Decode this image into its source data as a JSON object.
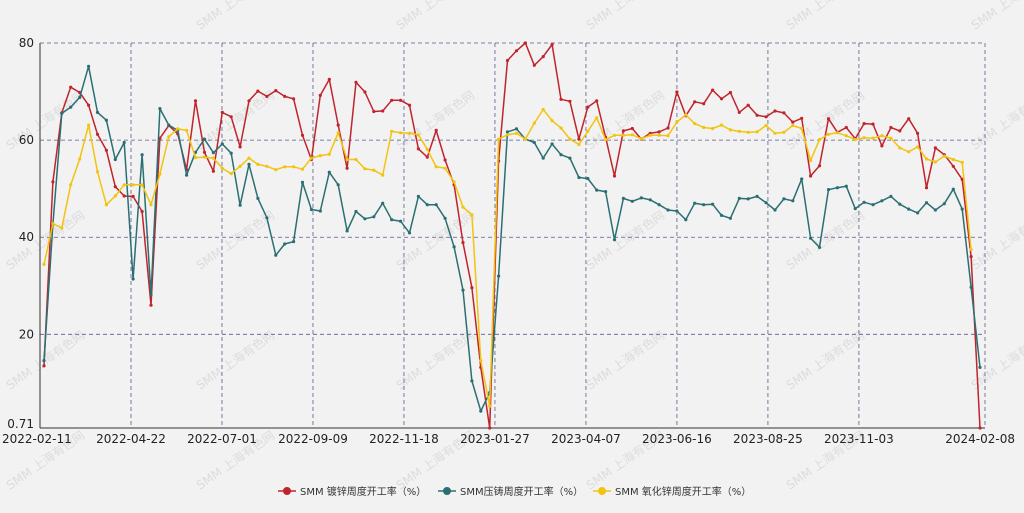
{
  "chart_data": {
    "type": "line",
    "x_start": "2022-02-11",
    "x_end": "2024-02-08",
    "xticks": [
      "2022-02-11",
      "2022-04-22",
      "2022-07-01",
      "2022-09-09",
      "2022-11-18",
      "2023-01-27",
      "2023-04-07",
      "2023-06-16",
      "2023-08-25",
      "2023-11-03",
      "2024-02-08"
    ],
    "yticks": [
      0.71,
      20,
      40,
      60,
      80
    ],
    "ylim": [
      0.71,
      80
    ],
    "grid": true,
    "legend_position": "bottom",
    "watermark": "SMM 上海有色网",
    "series": [
      {
        "name": "SMM 镀锌周度开工率（%）",
        "color": "#c0242c",
        "values": [
          13.5,
          51.4,
          65.6,
          70.9,
          69.8,
          67.2,
          61.2,
          57.9,
          50.4,
          48.5,
          48.4,
          45.3,
          26.0,
          60.4,
          63.0,
          61.3,
          53.9,
          68.1,
          57.5,
          53.6,
          65.7,
          64.8,
          58.6,
          68.1,
          70.1,
          69.0,
          70.2,
          69.0,
          68.5,
          61.0,
          56.0,
          69.2,
          72.5,
          63.1,
          54.2,
          71.9,
          69.9,
          65.9,
          66.0,
          68.2,
          68.2,
          67.2,
          58.2,
          56.5,
          62.0,
          55.9,
          50.8,
          38.9,
          29.6,
          13.2,
          0.71,
          55.7,
          76.4,
          78.4,
          80.0,
          75.4,
          77.2,
          79.7,
          68.4,
          68.0,
          60.2,
          66.8,
          68.1,
          60.6,
          52.6,
          61.9,
          62.4,
          60.2,
          61.4,
          61.7,
          62.5,
          69.9,
          65.0,
          67.9,
          67.5,
          70.3,
          68.5,
          69.8,
          65.7,
          67.2,
          65.1,
          64.8,
          66.0,
          65.6,
          63.7,
          64.5,
          52.6,
          54.7,
          64.4,
          61.6,
          62.6,
          60.3,
          63.4,
          63.3,
          58.8,
          62.6,
          61.9,
          64.4,
          61.4,
          50.2,
          58.4,
          57.0,
          54.6,
          51.9,
          36.0,
          0.71
        ]
      },
      {
        "name": "SMM压铸周度开工率（%）",
        "color": "#2a6f73",
        "values": [
          14.6,
          42.7,
          65.5,
          66.8,
          68.8,
          75.2,
          65.7,
          64.1,
          56.0,
          59.5,
          31.4,
          57.0,
          28.2,
          66.5,
          63.1,
          62.0,
          52.8,
          57.5,
          60.2,
          57.4,
          59.2,
          57.3,
          46.6,
          55.0,
          48.0,
          44.0,
          36.3,
          38.6,
          39.1,
          51.3,
          45.7,
          45.4,
          53.4,
          50.8,
          41.3,
          45.3,
          43.8,
          44.2,
          47.0,
          43.6,
          43.3,
          40.9,
          48.4,
          46.7,
          46.7,
          43.9,
          38.0,
          29.1,
          10.4,
          4.2,
          8.0,
          32.0,
          61.7,
          62.3,
          60.2,
          59.5,
          56.3,
          59.2,
          57.0,
          56.3,
          52.3,
          52.1,
          49.7,
          49.4,
          39.5,
          48.0,
          47.4,
          48.1,
          47.7,
          46.7,
          45.6,
          45.4,
          43.6,
          47.0,
          46.7,
          46.8,
          44.5,
          43.9,
          48.0,
          47.9,
          48.4,
          47.1,
          45.6,
          47.9,
          47.5,
          52.0,
          39.8,
          37.9,
          49.8,
          50.2,
          50.5,
          45.9,
          47.2,
          46.7,
          47.5,
          48.4,
          46.8,
          45.8,
          45.0,
          47.1,
          45.6,
          46.9,
          49.9,
          45.8,
          29.7,
          13.2
        ]
      },
      {
        "name": "SMM 氧化锌周度开工率（%）",
        "color": "#f2c40f",
        "values": [
          34.4,
          42.8,
          41.9,
          50.8,
          56.1,
          63.1,
          53.5,
          46.7,
          48.5,
          50.8,
          50.8,
          50.8,
          46.7,
          53.0,
          60.7,
          62.3,
          62.0,
          56.4,
          56.5,
          56.3,
          54.2,
          53.1,
          54.6,
          56.3,
          55.0,
          54.6,
          53.9,
          54.5,
          54.5,
          54.0,
          56.3,
          56.8,
          57.1,
          61.5,
          56.0,
          56.0,
          54.1,
          53.8,
          52.8,
          61.8,
          61.5,
          61.4,
          61.1,
          58.1,
          54.5,
          54.2,
          51.4,
          46.2,
          44.6,
          14.6,
          5.2,
          60.2,
          61.1,
          61.4,
          60.2,
          63.5,
          66.3,
          64.0,
          62.5,
          60.2,
          59.1,
          61.8,
          64.6,
          60.1,
          61.0,
          61.0,
          61.1,
          60.3,
          61.0,
          61.0,
          60.9,
          63.7,
          65.2,
          63.4,
          62.6,
          62.4,
          63.1,
          62.1,
          61.8,
          61.6,
          61.7,
          63.0,
          61.4,
          61.6,
          63.0,
          62.4,
          55.8,
          60.1,
          61.2,
          61.5,
          60.9,
          60.1,
          60.5,
          60.4,
          60.9,
          60.4,
          58.4,
          57.6,
          58.6,
          56.1,
          55.5,
          56.7,
          56.0,
          55.4,
          37.5
        ]
      }
    ]
  }
}
